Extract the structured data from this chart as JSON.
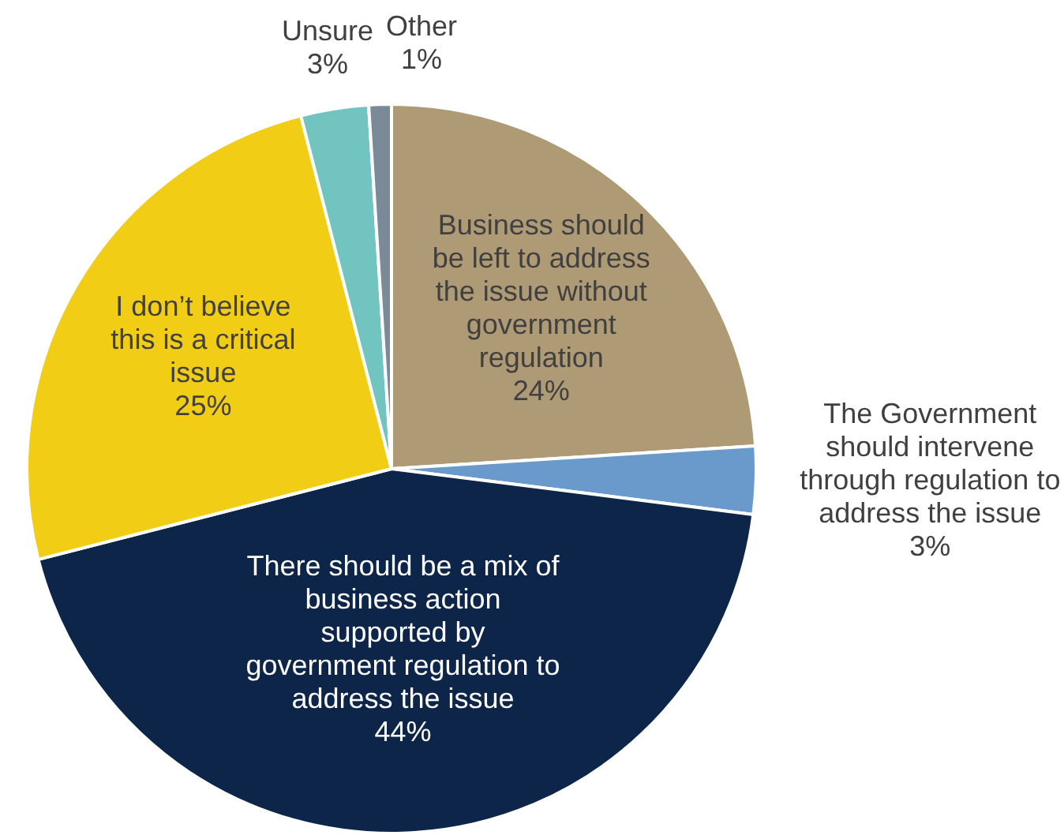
{
  "chart_data": {
    "type": "pie",
    "categories": [
      "Business should be left to address the issue without government regulation",
      "The Government should intervene through regulation to address the issue",
      "There should be a mix of business action supported by government regulation to address the issue",
      "I don’t believe this is a critical issue",
      "Unsure",
      "Other"
    ],
    "values": [
      24,
      3,
      44,
      25,
      3,
      1
    ],
    "value_labels": [
      "24%",
      "3%",
      "44%",
      "25%",
      "3%",
      "1%"
    ],
    "colors": [
      "#ae9a75",
      "#6a9acb",
      "#0d2548",
      "#f2cd16",
      "#72c4c0",
      "#7b8a99"
    ],
    "legend": false
  }
}
